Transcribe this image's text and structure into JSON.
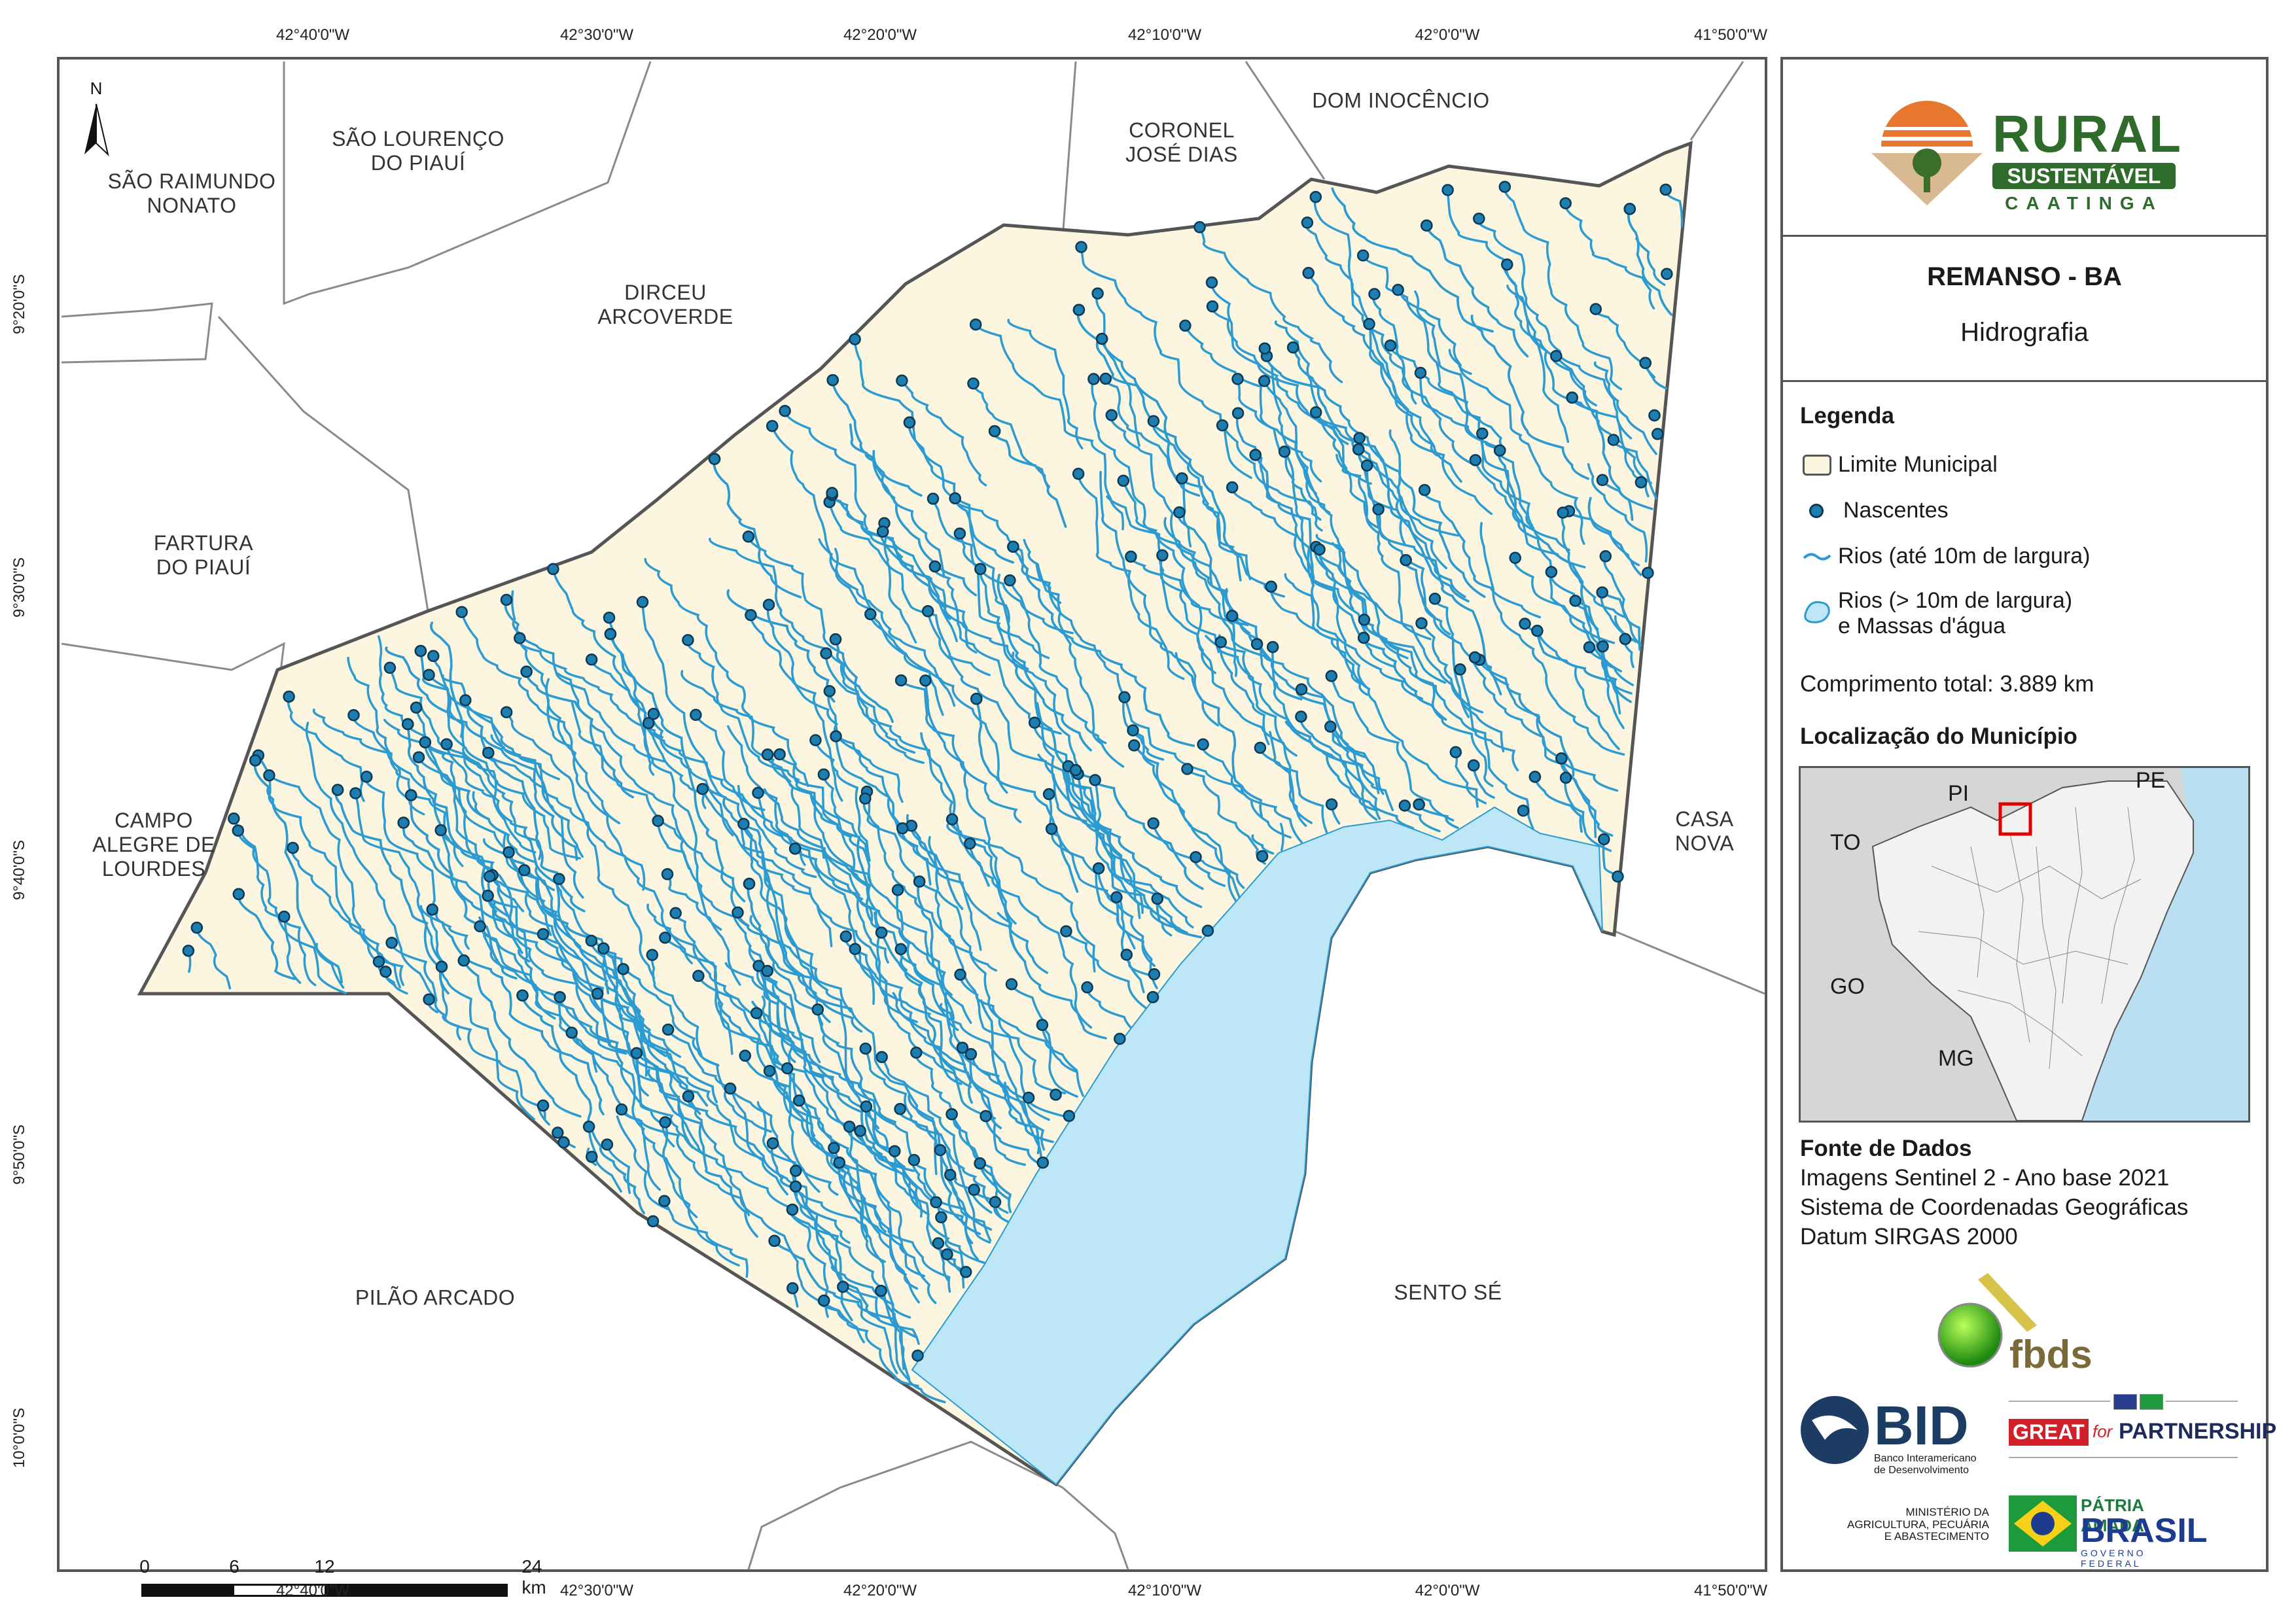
{
  "grid": {
    "top_ticks": [
      "42°40'0\"W",
      "42°30'0\"W",
      "42°20'0\"W",
      "42°10'0\"W",
      "42°0'0\"W",
      "41°50'0\"W"
    ],
    "bottom_ticks": [
      "42°40'0\"W",
      "42°30'0\"W",
      "42°20'0\"W",
      "42°10'0\"W",
      "42°0'0\"W",
      "41°50'0\"W"
    ],
    "left_ticks": [
      "9°20'0\"S",
      "9°30'0\"S",
      "9°40'0\"S",
      "9°50'0\"S",
      "10°0'0\"S"
    ]
  },
  "map": {
    "north_symbol": "N",
    "municipalities": [
      "SÃO RAIMUNDO\nNONATO",
      "SÃO LOURENÇO\nDO PIAUÍ",
      "CORONEL\nJOSÉ DIAS",
      "DOM INOCÊNCIO",
      "DIRCEU\nARCOVERDE",
      "FARTURA\nDO PIAUÍ",
      "CAMPO\nALEGRE DE\nLOURDES",
      "CASA NOVA",
      "PILÃO ARCADO",
      "SENTO SÉ"
    ],
    "colors": {
      "municipality_fill": "#fcf5df",
      "river": "#2b9bd1",
      "spring": "#1e7eb0",
      "spring_stroke": "#0c3a56",
      "water_body": "#bde6f7",
      "boundary": "#555555"
    },
    "scale_bar": {
      "labels": [
        "0",
        "6",
        "12",
        "24 km"
      ]
    }
  },
  "panel": {
    "logo": {
      "word": "RURAL",
      "band": "SUSTENTÁVEL",
      "sub": "CAATINGA"
    },
    "title": "REMANSO - BA",
    "subtitle": "Hidrografia",
    "legend_heading": "Legenda",
    "legend_items": [
      "Limite Municipal",
      "Nascentes",
      "Rios (até 10m de largura)",
      "Rios (> 10m de largura)",
      "e Massas d'água"
    ],
    "total_length": "Comprimento total:  3.889 km",
    "location_heading": "Localização do Município",
    "location_states": [
      "PI",
      "PE",
      "TO",
      "GO",
      "MG"
    ],
    "sources_heading": "Fonte de Dados",
    "sources": [
      "Imagens Sentinel 2 - Ano base 2021",
      "Sistema de Coordenadas Geográficas",
      "Datum SIRGAS 2000"
    ],
    "partners": {
      "fbds": "fbds",
      "bid": "BID",
      "bid_sub": "Banco Interamericano\nde Desenvolvimento",
      "great": "GREAT",
      "for": "for",
      "partnership": "PARTNERSHIP",
      "ministry": "MINISTÉRIO DA\nAGRICULTURA, PECUÁRIA\nE ABASTECIMENTO",
      "patria": "PÁTRIA AMADA",
      "brasil": "BRASIL",
      "gov": "GOVERNO FEDERAL"
    }
  }
}
